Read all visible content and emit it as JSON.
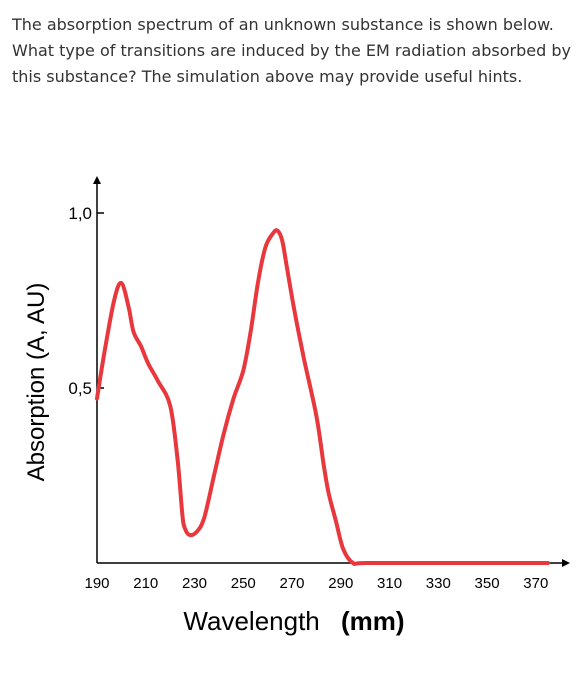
{
  "question": {
    "text": "The absorption spectrum of an unknown substance is shown below. What type of transitions are induced by the EM radiation absorbed by this substance? The simulation above may provide useful hints."
  },
  "chart_data": {
    "type": "line",
    "title": "",
    "xlabel": "Wavelength",
    "xlabel_unit": "(mm)",
    "ylabel": "Absorption (A, AU)",
    "xlim": [
      190,
      375
    ],
    "ylim": [
      0,
      1.0
    ],
    "x_ticks": [
      "190",
      "210",
      "230",
      "250",
      "270",
      "290",
      "310",
      "330",
      "350",
      "370"
    ],
    "y_ticks": [
      {
        "value": 0.5,
        "label": "0,5"
      },
      {
        "value": 1.0,
        "label": "1,0"
      }
    ],
    "grid": false,
    "legend": "none",
    "series": [
      {
        "color": "#e8383d",
        "x": [
          190,
          193,
          197,
          200,
          203,
          205,
          208,
          211,
          215,
          220,
          223,
          225,
          226,
          228,
          231,
          234,
          238,
          242,
          246,
          250,
          253,
          256,
          259,
          262,
          264,
          266,
          268,
          271,
          275,
          280,
          283,
          285,
          288,
          291,
          295,
          300,
          330,
          360,
          375
        ],
        "y": [
          0.47,
          0.6,
          0.75,
          0.8,
          0.73,
          0.66,
          0.62,
          0.57,
          0.52,
          0.45,
          0.3,
          0.14,
          0.1,
          0.08,
          0.09,
          0.13,
          0.25,
          0.37,
          0.47,
          0.55,
          0.66,
          0.8,
          0.9,
          0.94,
          0.95,
          0.92,
          0.84,
          0.72,
          0.58,
          0.42,
          0.28,
          0.2,
          0.12,
          0.04,
          0.0,
          0.0,
          0.0,
          0.0,
          0.0
        ]
      }
    ]
  }
}
